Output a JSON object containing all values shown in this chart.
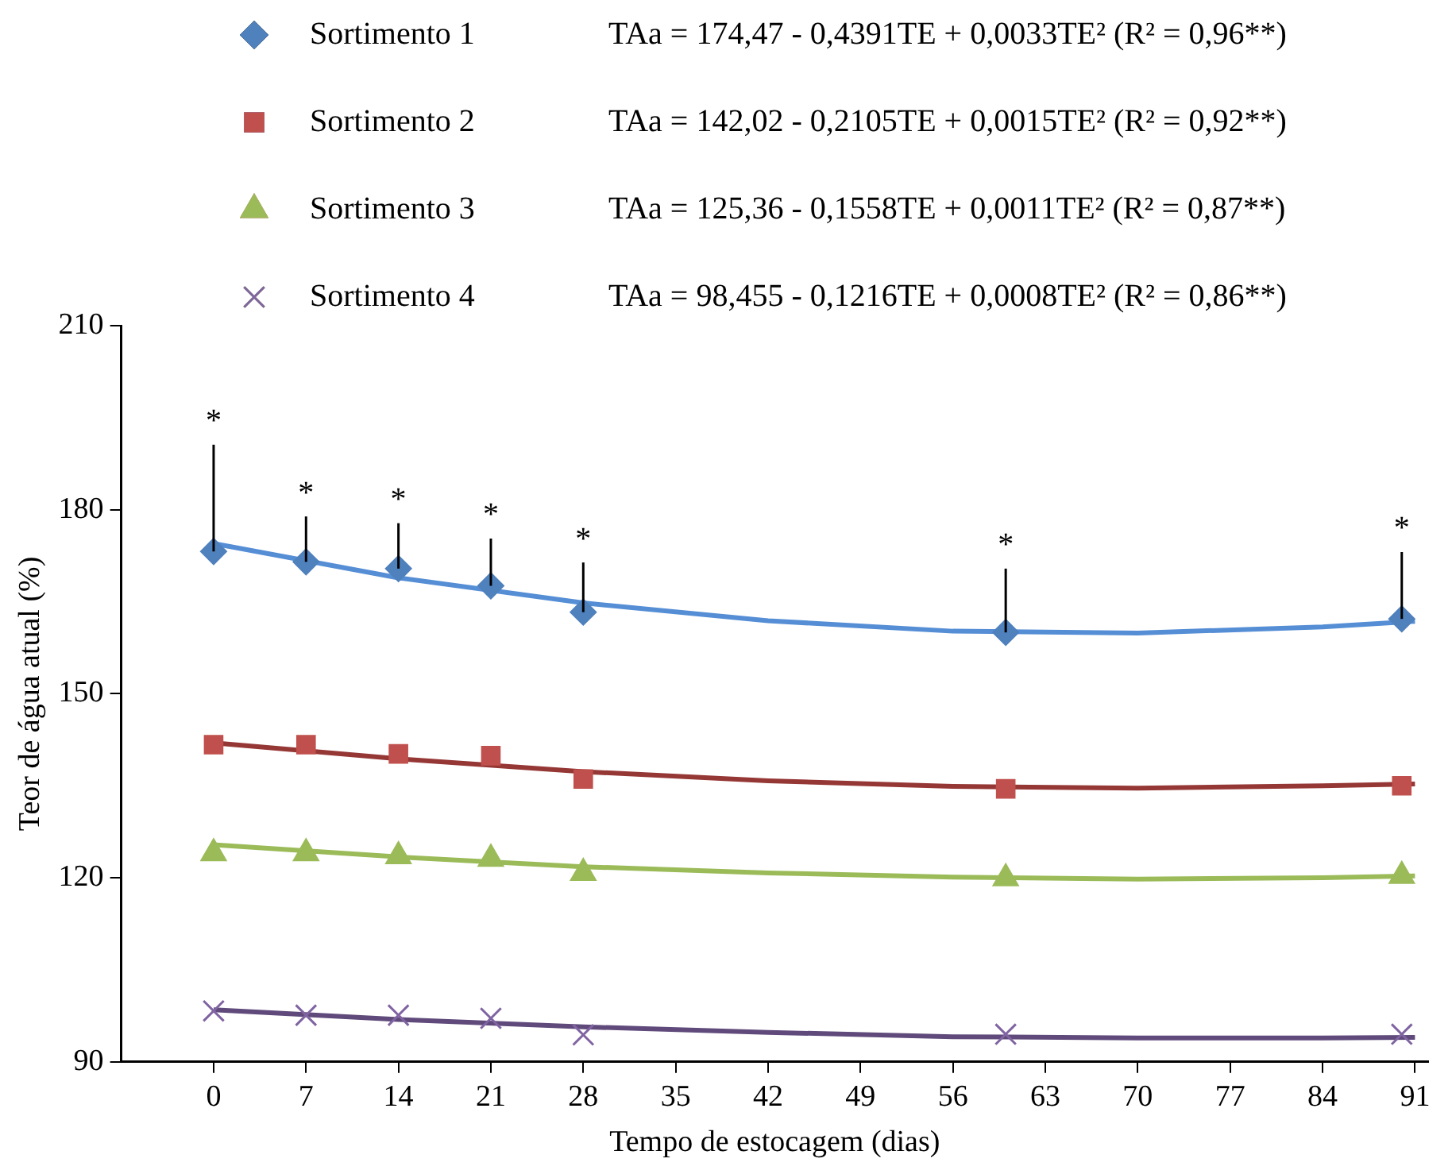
{
  "chart_data": {
    "type": "scatter",
    "xlabel": "Tempo de estocagem (dias)",
    "ylabel": "Teor de água atual (%)",
    "xlim": [
      -7,
      92
    ],
    "xticks": [
      0,
      7,
      14,
      21,
      28,
      35,
      42,
      49,
      56,
      63,
      70,
      77,
      84,
      91
    ],
    "ylim": [
      90,
      210
    ],
    "yticks": [
      90,
      120,
      150,
      180,
      210
    ],
    "legend": "top",
    "series": [
      {
        "name": "Sortimento 1",
        "type": "scatter",
        "marker": "diamond",
        "color": "#4f81bd",
        "x": [
          0,
          7,
          14,
          21,
          28,
          60,
          90
        ],
        "values": [
          173.2,
          171.5,
          170.4,
          167.6,
          163.3,
          160.0,
          162.2
        ],
        "errors": [
          [
            173.2,
            190.6
          ],
          [
            171.5,
            178.9
          ],
          [
            170.4,
            177.8
          ],
          [
            167.6,
            175.3
          ],
          [
            163.3,
            171.4
          ],
          [
            160.0,
            170.4
          ],
          [
            162.2,
            173.1
          ]
        ]
      },
      {
        "name": "Sortimento 2",
        "type": "scatter",
        "marker": "square",
        "color": "#c0504d",
        "x": [
          0,
          7,
          14,
          21,
          28,
          60,
          90
        ],
        "values": [
          141.7,
          141.7,
          140.2,
          139.9,
          136.1,
          134.5,
          135.0
        ]
      },
      {
        "name": "Sortimento 3",
        "type": "scatter",
        "marker": "triangle",
        "color": "#9bbb59",
        "x": [
          0,
          7,
          14,
          21,
          28,
          60,
          90
        ],
        "values": [
          124.0,
          124.0,
          123.5,
          123.1,
          120.8,
          119.9,
          120.3
        ]
      },
      {
        "name": "Sortimento 4",
        "type": "scatter",
        "marker": "cross",
        "color": "#8064a2",
        "x": [
          0,
          7,
          14,
          21,
          28,
          60,
          90
        ],
        "values": [
          98.3,
          97.6,
          97.6,
          97.1,
          94.4,
          94.5,
          94.5
        ]
      },
      {
        "type": "line",
        "marker": "none",
        "color": "#558ed5",
        "x": [
          0,
          14,
          28,
          42,
          56,
          70,
          84,
          91
        ],
        "values": [
          174.5,
          168.9,
          164.8,
          161.9,
          160.2,
          159.9,
          160.9,
          161.8
        ]
      },
      {
        "type": "line",
        "marker": "none",
        "color": "#953735",
        "x": [
          0,
          14,
          28,
          42,
          56,
          70,
          84,
          91
        ],
        "values": [
          142.0,
          139.4,
          137.3,
          135.8,
          134.9,
          134.6,
          135.0,
          135.3
        ]
      },
      {
        "type": "line",
        "marker": "none",
        "color": "#9bbb59",
        "x": [
          0,
          14,
          28,
          42,
          56,
          70,
          84,
          91
        ],
        "values": [
          125.4,
          123.4,
          121.8,
          120.8,
          120.1,
          119.8,
          120.0,
          120.3
        ]
      },
      {
        "type": "line",
        "marker": "none",
        "color": "#604a7b",
        "x": [
          0,
          14,
          28,
          42,
          56,
          70,
          84,
          91
        ],
        "values": [
          98.5,
          96.9,
          95.7,
          94.8,
          94.1,
          93.9,
          93.9,
          94.0
        ]
      }
    ],
    "annotations": [
      "TAa = 174,47 - 0,4391TE + 0,0033TE² (R² = 0,96**)",
      "TAa = 142,02 - 0,2105TE + 0,0015TE² (R² = 0,92**)",
      "TAa = 125,36 - 0,1558TE + 0,0011TE² (R² = 0,87**)",
      "TAa = 98,455 - 0,1216TE + 0,0008TE² (R² = 0,86**)",
      "*",
      "*",
      "*",
      "*",
      "*",
      "*",
      "*"
    ]
  }
}
